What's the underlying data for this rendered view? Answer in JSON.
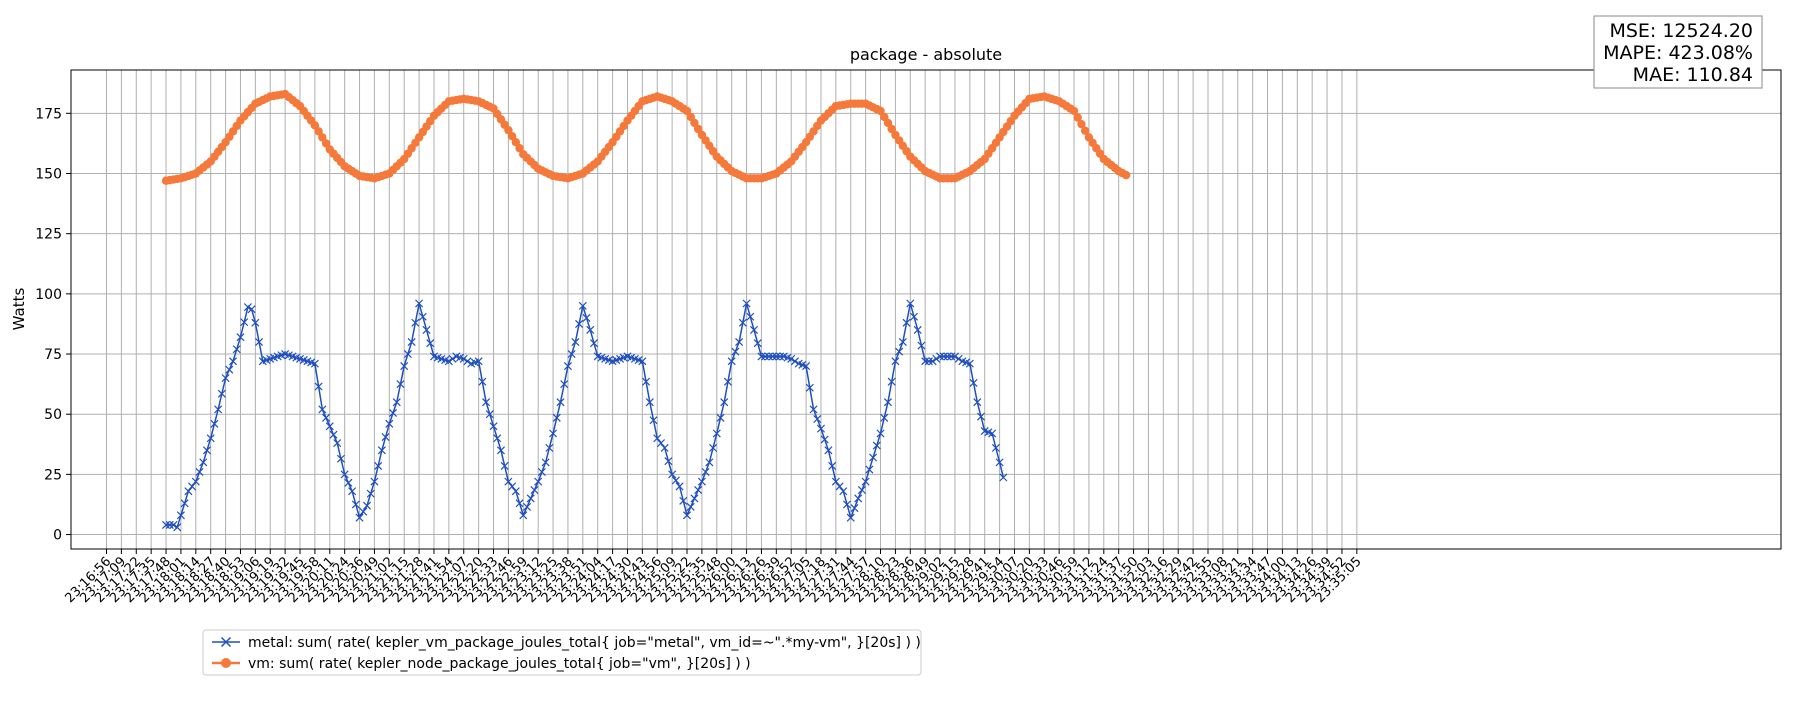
{
  "chart_data": {
    "type": "line",
    "title": "package - absolute",
    "ylabel": "Watts",
    "xlabel": "",
    "ylim": [
      -6,
      193
    ],
    "yticks": [
      0,
      25,
      50,
      75,
      100,
      125,
      150,
      175
    ],
    "grid": true,
    "legend_position": "bottom-left",
    "stats": [
      "MSE: 12524.20",
      "MAPE: 423.08%",
      "MAE: 110.84"
    ],
    "x_ticks": [
      "23:16:56",
      "23:17:09",
      "23:17:22",
      "23:17:35",
      "23:17:48",
      "23:18:01",
      "23:18:14",
      "23:18:27",
      "23:18:40",
      "23:18:53",
      "23:19:06",
      "23:19:19",
      "23:19:32",
      "23:19:45",
      "23:19:58",
      "23:20:11",
      "23:20:24",
      "23:20:36",
      "23:20:49",
      "23:21:02",
      "23:21:15",
      "23:21:28",
      "23:21:41",
      "23:21:54",
      "23:22:07",
      "23:22:20",
      "23:22:33",
      "23:22:46",
      "23:22:59",
      "23:23:12",
      "23:23:25",
      "23:23:38",
      "23:23:51",
      "23:24:04",
      "23:24:17",
      "23:24:30",
      "23:24:43",
      "23:24:56",
      "23:25:09",
      "23:25:22",
      "23:25:35",
      "23:25:48",
      "23:26:00",
      "23:26:13",
      "23:26:26",
      "23:26:39",
      "23:26:52",
      "23:27:05",
      "23:27:18",
      "23:27:31",
      "23:27:44",
      "23:27:57",
      "23:28:10",
      "23:28:23",
      "23:28:36",
      "23:28:49",
      "23:29:02",
      "23:29:15",
      "23:29:28",
      "23:29:41",
      "23:29:54",
      "23:30:07",
      "23:30:20",
      "23:30:33",
      "23:30:46",
      "23:30:59",
      "23:31:12",
      "23:31:24",
      "23:31:37",
      "23:31:50",
      "23:32:03",
      "23:32:16",
      "23:32:29",
      "23:32:42",
      "23:32:55",
      "23:33:08",
      "23:33:21",
      "23:33:34",
      "23:33:47",
      "23:34:00",
      "23:34:13",
      "23:34:26",
      "23:34:39",
      "23:34:52",
      "23:35:05"
    ],
    "series": [
      {
        "name": "metal: sum( rate( kepler_vm_package_joules_total{ job=\"metal\", vm_id=~\".*my-vm\", }[20s] ) )",
        "color": "#1f4fbf",
        "marker": "x",
        "keypoints": [
          [
            4,
            4
          ],
          [
            4.5,
            4
          ],
          [
            4.7,
            2
          ],
          [
            5,
            8
          ],
          [
            5.5,
            18
          ],
          [
            6,
            22
          ],
          [
            6.5,
            30
          ],
          [
            7,
            40
          ],
          [
            7.5,
            52
          ],
          [
            8,
            65
          ],
          [
            8.5,
            72
          ],
          [
            9,
            82
          ],
          [
            9.6,
            97
          ],
          [
            10,
            88
          ],
          [
            10.5,
            72
          ],
          [
            11,
            73
          ],
          [
            11.5,
            74
          ],
          [
            12,
            75
          ],
          [
            12.5,
            74
          ],
          [
            13,
            73
          ],
          [
            13.5,
            72
          ],
          [
            14,
            71
          ],
          [
            14.5,
            52
          ],
          [
            15,
            45
          ],
          [
            15.5,
            38
          ],
          [
            16,
            25
          ],
          [
            16.5,
            18
          ],
          [
            17,
            7
          ],
          [
            17.5,
            12
          ],
          [
            18,
            22
          ],
          [
            18.5,
            35
          ],
          [
            19,
            46
          ],
          [
            19.5,
            55
          ],
          [
            20,
            70
          ],
          [
            20.5,
            80
          ],
          [
            21,
            96
          ],
          [
            21.5,
            85
          ],
          [
            22,
            74
          ],
          [
            22.5,
            73
          ],
          [
            23,
            72
          ],
          [
            23.5,
            74
          ],
          [
            24,
            73
          ],
          [
            24.5,
            71
          ],
          [
            25,
            72
          ],
          [
            25.5,
            55
          ],
          [
            26,
            45
          ],
          [
            26.5,
            35
          ],
          [
            27,
            22
          ],
          [
            27.5,
            18
          ],
          [
            28,
            8
          ],
          [
            28.5,
            15
          ],
          [
            29,
            22
          ],
          [
            29.5,
            30
          ],
          [
            30,
            42
          ],
          [
            30.5,
            55
          ],
          [
            31,
            70
          ],
          [
            31.5,
            80
          ],
          [
            32,
            95
          ],
          [
            32.5,
            85
          ],
          [
            33,
            74
          ],
          [
            33.5,
            73
          ],
          [
            34,
            72
          ],
          [
            34.5,
            73
          ],
          [
            35,
            74
          ],
          [
            35.5,
            73
          ],
          [
            36,
            72
          ],
          [
            36.5,
            55
          ],
          [
            37,
            40
          ],
          [
            37.5,
            36
          ],
          [
            38,
            25
          ],
          [
            38.5,
            20
          ],
          [
            39,
            8
          ],
          [
            39.5,
            15
          ],
          [
            40,
            22
          ],
          [
            40.5,
            30
          ],
          [
            41,
            42
          ],
          [
            41.5,
            55
          ],
          [
            42,
            72
          ],
          [
            42.5,
            80
          ],
          [
            43,
            96
          ],
          [
            43.5,
            85
          ],
          [
            44,
            74
          ],
          [
            44.5,
            74
          ],
          [
            45,
            74
          ],
          [
            45.5,
            74
          ],
          [
            46,
            73
          ],
          [
            46.5,
            71
          ],
          [
            47,
            70
          ],
          [
            47.5,
            52
          ],
          [
            48,
            44
          ],
          [
            48.5,
            35
          ],
          [
            49,
            22
          ],
          [
            49.5,
            18
          ],
          [
            50,
            7
          ],
          [
            50.5,
            15
          ],
          [
            51,
            22
          ],
          [
            51.5,
            32
          ],
          [
            52,
            42
          ],
          [
            52.5,
            55
          ],
          [
            53,
            72
          ],
          [
            53.5,
            80
          ],
          [
            54,
            96
          ],
          [
            54.5,
            85
          ],
          [
            55,
            72
          ],
          [
            55.5,
            72
          ],
          [
            56,
            74
          ],
          [
            56.5,
            74
          ],
          [
            57,
            74
          ],
          [
            57.5,
            72
          ],
          [
            58,
            71
          ],
          [
            58.5,
            55
          ],
          [
            59,
            43
          ],
          [
            59.5,
            42
          ],
          [
            60,
            30
          ],
          [
            60.4,
            20
          ]
        ]
      },
      {
        "name": "vm: sum( rate( kepler_node_package_joules_total{ job=\"vm\", }[20s] ) )",
        "color": "#f5793a",
        "marker": "o",
        "keypoints": [
          [
            4,
            147
          ],
          [
            5,
            148
          ],
          [
            6,
            150
          ],
          [
            7,
            155
          ],
          [
            8,
            163
          ],
          [
            9,
            172
          ],
          [
            10,
            179
          ],
          [
            11,
            182
          ],
          [
            12,
            183
          ],
          [
            13,
            178
          ],
          [
            14,
            170
          ],
          [
            15,
            160
          ],
          [
            16,
            153
          ],
          [
            17,
            149
          ],
          [
            18,
            148
          ],
          [
            19,
            150
          ],
          [
            20,
            156
          ],
          [
            21,
            165
          ],
          [
            22,
            174
          ],
          [
            23,
            180
          ],
          [
            24,
            181
          ],
          [
            25,
            180
          ],
          [
            26,
            177
          ],
          [
            27,
            168
          ],
          [
            28,
            158
          ],
          [
            29,
            152
          ],
          [
            30,
            149
          ],
          [
            31,
            148
          ],
          [
            32,
            150
          ],
          [
            33,
            155
          ],
          [
            34,
            163
          ],
          [
            35,
            172
          ],
          [
            36,
            180
          ],
          [
            37,
            182
          ],
          [
            38,
            180
          ],
          [
            39,
            176
          ],
          [
            40,
            166
          ],
          [
            41,
            157
          ],
          [
            42,
            151
          ],
          [
            43,
            148
          ],
          [
            44,
            148
          ],
          [
            45,
            150
          ],
          [
            46,
            155
          ],
          [
            47,
            163
          ],
          [
            48,
            172
          ],
          [
            49,
            178
          ],
          [
            50,
            179
          ],
          [
            51,
            179
          ],
          [
            52,
            176
          ],
          [
            53,
            166
          ],
          [
            54,
            157
          ],
          [
            55,
            151
          ],
          [
            56,
            148
          ],
          [
            57,
            148
          ],
          [
            58,
            151
          ],
          [
            59,
            156
          ],
          [
            60,
            165
          ],
          [
            61,
            174
          ],
          [
            62,
            181
          ],
          [
            63,
            182
          ],
          [
            64,
            180
          ],
          [
            65,
            176
          ],
          [
            66,
            165
          ],
          [
            67,
            156
          ],
          [
            68,
            151
          ],
          [
            68.6,
            149
          ]
        ]
      }
    ]
  }
}
